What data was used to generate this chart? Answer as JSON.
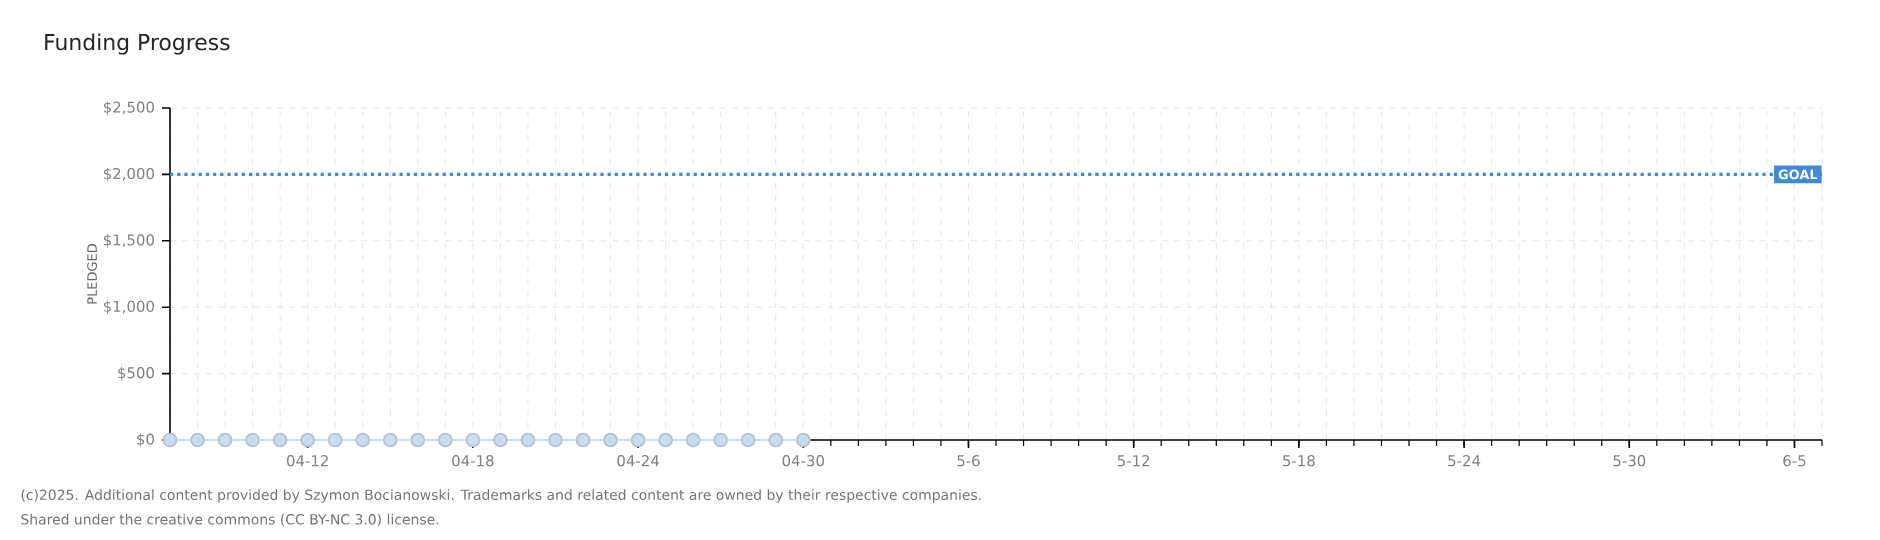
{
  "chart_data": {
    "type": "line",
    "title": "Funding Progress",
    "ylabel": "PLEDGED",
    "x": [
      "2025-04-07",
      "2025-04-08",
      "2025-04-09",
      "2025-04-10",
      "2025-04-11",
      "2025-04-12",
      "2025-04-13",
      "2025-04-14",
      "2025-04-15",
      "2025-04-16",
      "2025-04-17",
      "2025-04-18",
      "2025-04-19",
      "2025-04-20",
      "2025-04-21",
      "2025-04-22",
      "2025-04-23",
      "2025-04-24",
      "2025-04-25",
      "2025-04-26",
      "2025-04-27",
      "2025-04-28",
      "2025-04-29",
      "2025-04-30"
    ],
    "series": [
      {
        "color": "#c6ddf5",
        "values": [
          0,
          0,
          0,
          0,
          0,
          0,
          0,
          0,
          0,
          0,
          0,
          0,
          0,
          0,
          0,
          0,
          0,
          0,
          0,
          0,
          0,
          0,
          0,
          0
        ]
      }
    ],
    "xlim": [
      "2025-04-07",
      "2025-06-06"
    ],
    "xticks": [
      {
        "value": "2025-04-12",
        "label": "04-12"
      },
      {
        "value": "2025-04-18",
        "label": "04-18"
      },
      {
        "value": "2025-04-24",
        "label": "04-24"
      },
      {
        "value": "2025-04-30",
        "label": "04-30"
      },
      {
        "value": "2025-05-06",
        "label": "5-6"
      },
      {
        "value": "2025-05-12",
        "label": "5-12"
      },
      {
        "value": "2025-05-18",
        "label": "5-18"
      },
      {
        "value": "2025-05-24",
        "label": "5-24"
      },
      {
        "value": "2025-05-30",
        "label": "5-30"
      },
      {
        "value": "2025-06-05",
        "label": "6-5"
      }
    ],
    "ylim": [
      0,
      2500
    ],
    "yticks": [
      {
        "value": 0,
        "label": "$0"
      },
      {
        "value": 500,
        "label": "$500"
      },
      {
        "value": 1000,
        "label": "$1,000"
      },
      {
        "value": 1500,
        "label": "$1,500"
      },
      {
        "value": 2000,
        "label": "$2,000"
      },
      {
        "value": 2500,
        "label": "$2,500"
      }
    ],
    "ref_lines": [
      {
        "axis": "y",
        "value": 2000,
        "label": "GOAL",
        "color": "#3f8ad8",
        "line_style": "dotted"
      }
    ],
    "grid": true,
    "marker": "circle",
    "line_style": "solid",
    "annotations": [
      "(c)2025. Additional content provided by Szymon Bocianowski. Trademarks and related content are owned by their respective companies.",
      "Shared under the creative commons (CC BY-NC 3.0) license."
    ]
  }
}
